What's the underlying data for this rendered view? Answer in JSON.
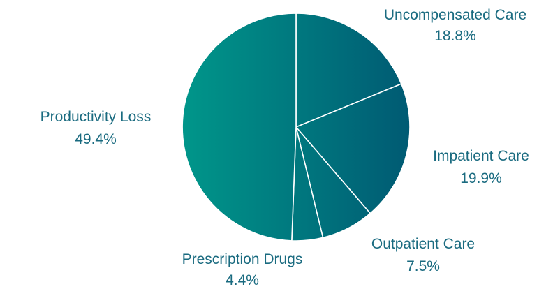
{
  "chart_data": {
    "type": "pie",
    "title": "",
    "slices": [
      {
        "label": "Uncompensated Care",
        "value": 18.8,
        "display": "18.8%"
      },
      {
        "label": "Impatient Care",
        "value": 19.9,
        "display": "19.9%"
      },
      {
        "label": "Outpatient Care",
        "value": 7.5,
        "display": "7.5%"
      },
      {
        "label": "Prescription Drugs",
        "value": 4.4,
        "display": "4.4%"
      },
      {
        "label": "Productivity Loss",
        "value": 49.4,
        "display": "49.4%"
      }
    ],
    "start": "12 o'clock",
    "direction": "clockwise",
    "gradient_colors": [
      "#00968a",
      "#005a73"
    ],
    "label_color": "#1a6b80",
    "slice_border_color": "#ffffff"
  }
}
